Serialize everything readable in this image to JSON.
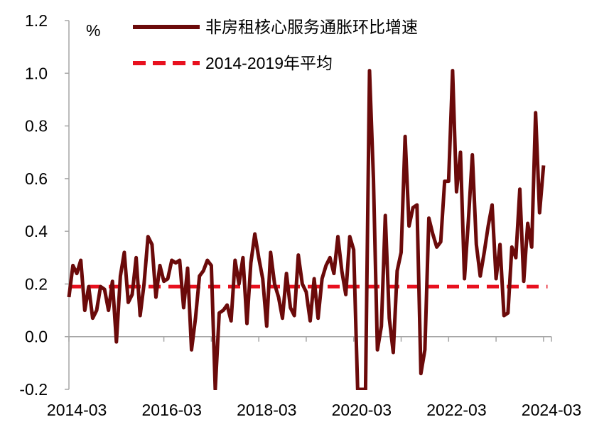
{
  "chart_data": {
    "type": "line",
    "unit_label": "%",
    "ylim": [
      -0.2,
      1.2
    ],
    "yticks": [
      "1.2",
      "1.0",
      "0.8",
      "0.6",
      "0.4",
      "0.2",
      "0.0",
      "-0.2"
    ],
    "ytick_values": [
      1.2,
      1.0,
      0.8,
      0.6,
      0.4,
      0.2,
      0.0,
      -0.2
    ],
    "xticks": [
      "2014-03",
      "2016-03",
      "2018-03",
      "2020-03",
      "2022-03",
      "2024-03"
    ],
    "x_start": "2014-01",
    "x_end": "2024-03",
    "series": [
      {
        "name": "非房租核心服务通胀环比增速",
        "color": "#6b0a0a",
        "style": "solid",
        "values": [
          0.15,
          0.27,
          0.24,
          0.29,
          0.1,
          0.19,
          0.07,
          0.1,
          0.19,
          0.18,
          0.1,
          0.21,
          -0.02,
          0.23,
          0.32,
          0.13,
          0.16,
          0.3,
          0.08,
          0.2,
          0.38,
          0.35,
          0.15,
          0.27,
          0.21,
          0.22,
          0.29,
          0.28,
          0.29,
          0.11,
          0.26,
          -0.05,
          0.07,
          0.23,
          0.25,
          0.29,
          0.27,
          -0.2,
          0.09,
          0.1,
          0.12,
          0.06,
          0.29,
          0.2,
          0.3,
          0.05,
          0.28,
          0.39,
          0.3,
          0.22,
          0.04,
          0.32,
          0.2,
          0.15,
          0.07,
          0.24,
          0.11,
          0.08,
          0.31,
          0.2,
          0.17,
          0.06,
          0.22,
          0.07,
          0.22,
          0.27,
          0.3,
          0.24,
          0.38,
          0.25,
          0.16,
          0.38,
          0.33,
          -0.2,
          -0.2,
          -0.2,
          1.01,
          0.6,
          -0.05,
          0.04,
          0.46,
          0.07,
          -0.06,
          0.25,
          0.32,
          0.76,
          0.42,
          0.49,
          0.5,
          -0.14,
          -0.05,
          0.45,
          0.39,
          0.34,
          0.36,
          0.59,
          0.59,
          1.01,
          0.55,
          0.7,
          0.22,
          0.44,
          0.69,
          0.35,
          0.23,
          0.32,
          0.42,
          0.5,
          0.22,
          0.35,
          0.08,
          0.09,
          0.34,
          0.3,
          0.56,
          0.21,
          0.43,
          0.34,
          0.85,
          0.47,
          0.65
        ]
      },
      {
        "name": "2014-2019年平均",
        "color": "#e8101e",
        "style": "dashed",
        "x_range": [
          "2014-01",
          "2024-02"
        ],
        "value": 0.19
      }
    ],
    "legend_position": "top-center"
  }
}
